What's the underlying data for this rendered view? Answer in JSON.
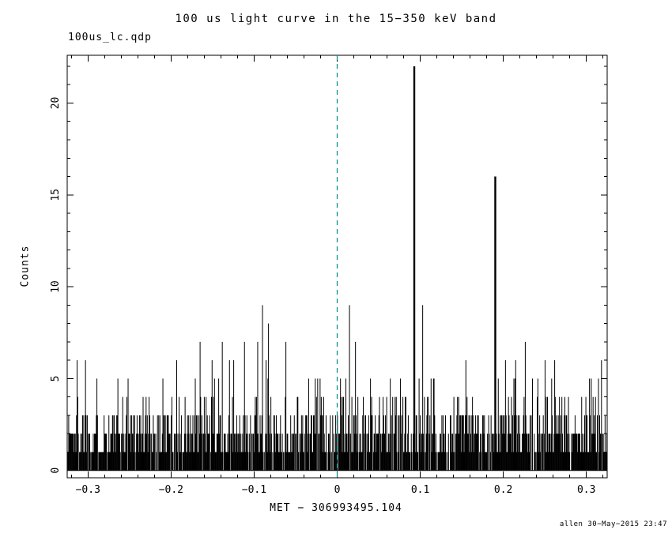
{
  "chart_data": {
    "type": "bar",
    "title": "100 us light curve in the 15−350 keV band",
    "file_label": "100us_lc.qdp",
    "xlabel": "MET − 306993495.104",
    "ylabel": "Counts",
    "credit": "allen 30−May−2015 23:47",
    "xlim": [
      -0.325,
      0.325
    ],
    "ylim": [
      -0.4,
      22.6
    ],
    "x_ticks": [
      {
        "v": -0.3,
        "label": "−0.3"
      },
      {
        "v": -0.2,
        "label": "−0.2"
      },
      {
        "v": -0.1,
        "label": "−0.1"
      },
      {
        "v": 0,
        "label": "0"
      },
      {
        "v": 0.1,
        "label": "0.1"
      },
      {
        "v": 0.2,
        "label": "0.2"
      },
      {
        "v": 0.3,
        "label": "0.3"
      }
    ],
    "x_minor_step": 0.02,
    "y_ticks": [
      {
        "v": 0,
        "label": "0"
      },
      {
        "v": 5,
        "label": "5"
      },
      {
        "v": 10,
        "label": "10"
      },
      {
        "v": 15,
        "label": "15"
      },
      {
        "v": 20,
        "label": "20"
      }
    ],
    "y_minor_step": 1,
    "bar_color": "#000000",
    "frame_color": "#000000",
    "background": "#ffffff",
    "zero_line": {
      "x": 0,
      "color": "#008b8b",
      "dash": "6,5"
    },
    "noise": {
      "seed": 1337,
      "bins": 900,
      "levels": [
        0,
        1,
        2,
        3,
        4,
        5,
        6,
        7
      ],
      "probs": [
        0.1,
        0.27,
        0.3,
        0.2,
        0.085,
        0.033,
        0.009,
        0.003
      ]
    },
    "peaks": [
      {
        "x": -0.313,
        "y": 6
      },
      {
        "x": -0.303,
        "y": 6
      },
      {
        "x": -0.252,
        "y": 5
      },
      {
        "x": -0.21,
        "y": 5
      },
      {
        "x": -0.165,
        "y": 7
      },
      {
        "x": -0.138,
        "y": 7
      },
      {
        "x": -0.13,
        "y": 6
      },
      {
        "x": -0.096,
        "y": 7
      },
      {
        "x": -0.09,
        "y": 9
      },
      {
        "x": -0.083,
        "y": 8
      },
      {
        "x": -0.062,
        "y": 7
      },
      {
        "x": 0.015,
        "y": 9
      },
      {
        "x": 0.04,
        "y": 5
      },
      {
        "x": 0.093,
        "y": 22
      },
      {
        "x": 0.103,
        "y": 9
      },
      {
        "x": 0.155,
        "y": 6
      },
      {
        "x": 0.19,
        "y": 16
      },
      {
        "x": 0.25,
        "y": 6
      },
      {
        "x": 0.262,
        "y": 6
      },
      {
        "x": 0.318,
        "y": 6
      }
    ]
  }
}
